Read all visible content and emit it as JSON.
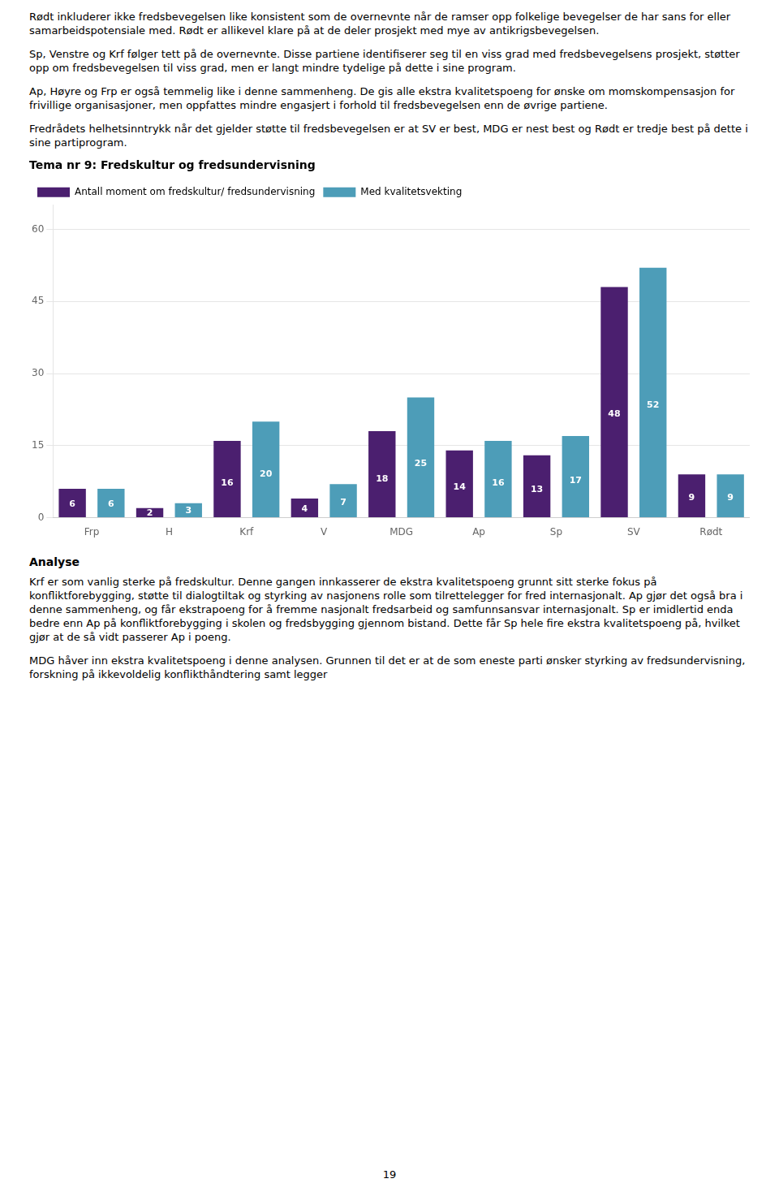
{
  "chart_data": {
    "type": "bar",
    "title": "Tema nr 9: Fredskultur og fredsundervisning",
    "categories": [
      "Frp",
      "H",
      "Krf",
      "V",
      "MDG",
      "Ap",
      "Sp",
      "SV",
      "Rødt"
    ],
    "series": [
      {
        "name": "Antall moment om fredskultur/ fredsundervisning",
        "color": "#4B1F6F",
        "values": [
          6,
          2,
          16,
          4,
          18,
          14,
          13,
          48,
          9
        ]
      },
      {
        "name": "Med kvalitetsvekting",
        "color": "#4D9DB8",
        "values": [
          6,
          3,
          20,
          7,
          25,
          16,
          17,
          52,
          9
        ]
      }
    ],
    "ylim": [
      0,
      65
    ],
    "yticks": [
      0,
      15,
      30,
      45,
      60
    ],
    "grid": true,
    "legend": "top",
    "data_labels": true,
    "annotations": [
      "Rødt inkluderer ikke fredsbevegelsen like konsistent som de overnevnte når de ramser opp folkelige bevegelser de har sans for eller samarbeidspotensiale med. Rødt er allikevel klare på at de deler prosjekt med mye av antikrigsbevegelsen.",
      "Sp, Venstre og Krf følger tett på de overnevnte. Disse partiene identifiserer seg til en viss grad med fredsbevegelsens prosjekt, støtter opp om fredsbevegelsen til viss grad, men er langt mindre tydelige på dette i sine program.",
      "Ap, Høyre og Frp er også temmelig like i denne sammenheng. De gis alle ekstra kvalitetspoeng for ønske om momskompensasjon for frivillige organisasjoner, men oppfattes mindre engasjert i forhold til fredsbevegelsen enn de øvrige partiene.",
      "Fredrådets helhetsinntrykk når det gjelder støtte til fredsbevegelsen er at SV er best, MDG er nest best og Rødt er tredje best på dette i sine partiprogram.",
      "Analyse",
      "Krf er som vanlig sterke på fredskultur. Denne gangen innkasserer de ekstra kvalitetspoeng grunnt sitt sterke fokus på konfliktforebygging, støtte til dialogtiltak og styrking av nasjonens rolle som tilrettelegger for fred internasjonalt. Ap gjør det også bra i denne sammenheng, og får ekstrapoeng for å fremme nasjonalt fredsarbeid og samfunnsansvar internasjonalt. Sp er imidlertid enda bedre enn Ap på konfliktforebygging i skolen og fredsbygging gjennom bistand. Dette får Sp hele fire ekstra kvalitetspoeng på, hvilket gjør at de så vidt passerer Ap i poeng.",
      "MDG håver inn ekstra kvalitetspoeng i denne analysen. Grunnen til det er at de som eneste parti ønsker styrking av fredsundervisning, forskning på ikkevoldelig konflikthåndtering samt legger",
      "19"
    ]
  }
}
